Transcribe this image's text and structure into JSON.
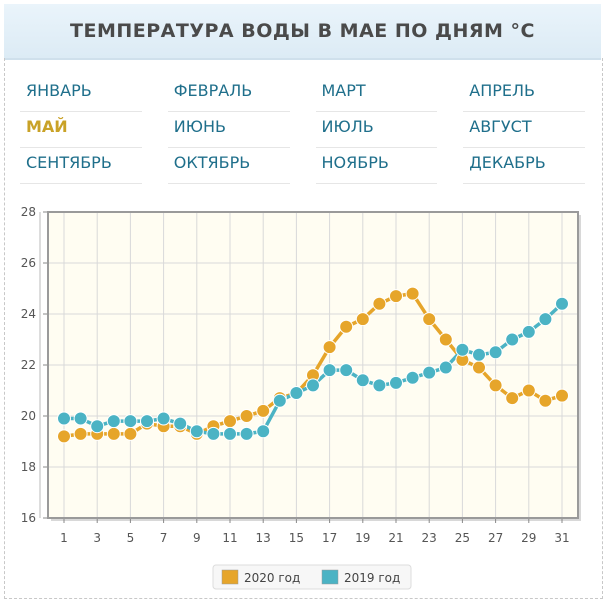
{
  "header": {
    "title": "ТЕМПЕРАТУРА ВОДЫ В МАЕ ПО ДНЯМ °C"
  },
  "months": [
    [
      "ЯНВАРЬ",
      "ФЕВРАЛЬ",
      "МАРТ",
      "АПРЕЛЬ"
    ],
    [
      "МАЙ",
      "ИЮНЬ",
      "ИЮЛЬ",
      "АВГУСТ"
    ],
    [
      "СЕНТЯБРЬ",
      "ОКТЯБРЬ",
      "НОЯБРЬ",
      "ДЕКАБРЬ"
    ]
  ],
  "active_month": "МАЙ",
  "colors": {
    "series_2020": "#e6a52a",
    "series_2019": "#4bb3c4",
    "plot_bg": "#fffdf2",
    "grid": "#d9d9d9",
    "axis": "#888888"
  },
  "chart_data": {
    "type": "line",
    "x": [
      1,
      2,
      3,
      4,
      5,
      6,
      7,
      8,
      9,
      10,
      11,
      12,
      13,
      14,
      15,
      16,
      17,
      18,
      19,
      20,
      21,
      22,
      23,
      24,
      25,
      26,
      27,
      28,
      29,
      30,
      31
    ],
    "xticks": [
      1,
      3,
      5,
      7,
      9,
      11,
      13,
      15,
      17,
      19,
      21,
      23,
      25,
      27,
      29,
      31
    ],
    "ylim": [
      16,
      28
    ],
    "yticks": [
      16,
      18,
      20,
      22,
      24,
      26,
      28
    ],
    "grid": true,
    "legend_position": "bottom",
    "series": [
      {
        "name": "2020 год",
        "color": "#e6a52a",
        "values": [
          19.2,
          19.3,
          19.3,
          19.3,
          19.3,
          19.7,
          19.6,
          19.6,
          19.3,
          19.6,
          19.8,
          20.0,
          20.2,
          20.7,
          20.9,
          21.6,
          22.7,
          23.5,
          23.8,
          24.4,
          24.7,
          24.8,
          23.8,
          23.0,
          22.2,
          21.9,
          21.2,
          20.7,
          21.0,
          20.6,
          20.8
        ]
      },
      {
        "name": "2019 год",
        "color": "#4bb3c4",
        "values": [
          19.9,
          19.9,
          19.6,
          19.8,
          19.8,
          19.8,
          19.9,
          19.7,
          19.4,
          19.3,
          19.3,
          19.3,
          19.4,
          20.6,
          20.9,
          21.2,
          21.8,
          21.8,
          21.4,
          21.2,
          21.3,
          21.5,
          21.7,
          21.9,
          22.6,
          22.4,
          22.5,
          23.0,
          23.3,
          23.8,
          24.4
        ]
      }
    ]
  }
}
